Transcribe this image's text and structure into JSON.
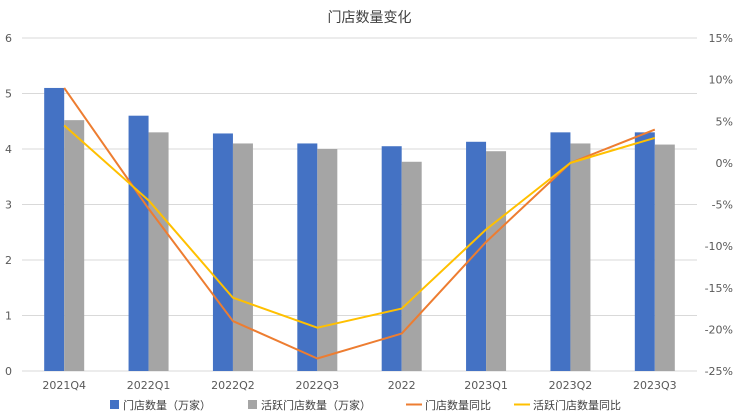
{
  "chart_data": {
    "type": "bar",
    "title": "门店数量变化",
    "categories": [
      "2021Q4",
      "2022Q1",
      "2022Q2",
      "2022Q3",
      "2022",
      "2023Q1",
      "2023Q2",
      "2023Q3"
    ],
    "y_left": {
      "ylim": [
        0,
        6
      ],
      "ticks": [
        "0",
        "1",
        "2",
        "3",
        "4",
        "5",
        "6"
      ]
    },
    "y_right": {
      "ylim": [
        -25,
        15
      ],
      "ticks": [
        "-25%",
        "-20%",
        "-15%",
        "-10%",
        "-5%",
        "0%",
        "5%",
        "10%",
        "15%"
      ]
    },
    "grid": true,
    "legend_position": "bottom",
    "series": [
      {
        "name": "门店数量（万家）",
        "type": "bar",
        "axis": "left",
        "color": "#4472C4",
        "values": [
          5.1,
          4.6,
          4.28,
          4.1,
          4.05,
          4.13,
          4.3,
          4.3
        ]
      },
      {
        "name": "活跃门店数量（万家）",
        "type": "bar",
        "axis": "left",
        "color": "#A5A5A5",
        "values": [
          4.52,
          4.3,
          4.1,
          4.0,
          3.77,
          3.96,
          4.1,
          4.08
        ]
      },
      {
        "name": "门店数量同比",
        "type": "line",
        "axis": "right",
        "unit": "%",
        "color": "#ED7D31",
        "values": [
          9.0,
          -5.5,
          -19.0,
          -23.5,
          -20.5,
          -9.5,
          0.0,
          4.0
        ]
      },
      {
        "name": "活跃门店数量同比",
        "type": "line",
        "axis": "right",
        "unit": "%",
        "color": "#FFC000",
        "values": [
          4.5,
          -4.5,
          -16.2,
          -19.8,
          -17.5,
          -8.0,
          0.0,
          3.0
        ]
      }
    ]
  }
}
